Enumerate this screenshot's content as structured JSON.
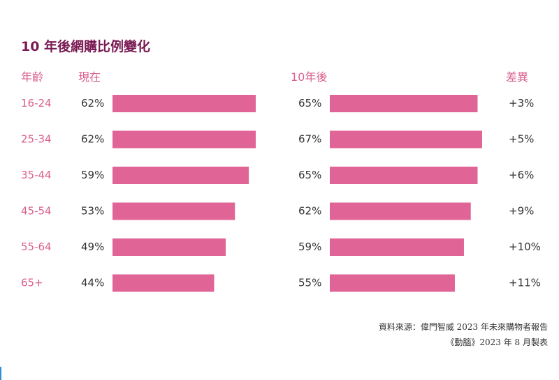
{
  "title": "10 年後網購比例變化",
  "headers": {
    "age": "年齡",
    "now": "現在",
    "future": "10年後",
    "diff": "差異"
  },
  "source": {
    "line1": "資料來源：偉門智威 2023 年未來購物者報告",
    "line2": "《動腦》2023 年 8 月製表"
  },
  "colors": {
    "bar": "#e06596",
    "age_label": "#d9608e",
    "title": "#7a1b54",
    "value_text": "#333333"
  },
  "chart_data": {
    "type": "bar",
    "categories": [
      "16-24",
      "25-34",
      "35-44",
      "45-54",
      "55-64",
      "65+"
    ],
    "series": [
      {
        "name": "現在",
        "values": [
          62,
          62,
          59,
          53,
          49,
          44
        ],
        "labels": [
          "62%",
          "62%",
          "59%",
          "53%",
          "49%",
          "44%"
        ]
      },
      {
        "name": "10年後",
        "values": [
          65,
          67,
          65,
          62,
          59,
          55
        ],
        "labels": [
          "65%",
          "67%",
          "65%",
          "62%",
          "59%",
          "55%"
        ]
      }
    ],
    "difference": [
      "+3%",
      "+5%",
      "+6%",
      "+9%",
      "+10%",
      "+11%"
    ],
    "orientation": "horizontal",
    "grid": false,
    "legend": "none"
  }
}
